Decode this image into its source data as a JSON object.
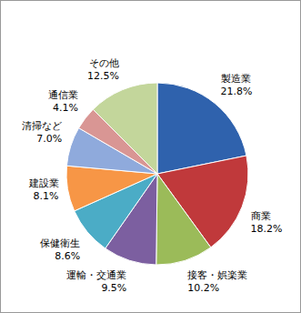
{
  "chart_data": {
    "type": "pie",
    "categories": [
      "製造業",
      "商業",
      "接客・娯楽業",
      "運輸・交通業",
      "保健衛生",
      "建設業",
      "清掃など",
      "通信業",
      "その他"
    ],
    "values": [
      21.8,
      18.2,
      10.2,
      9.5,
      8.6,
      8.1,
      7.0,
      4.1,
      12.5
    ],
    "value_labels": [
      "21.8%",
      "18.2%",
      "10.2%",
      "9.5%",
      "8.6%",
      "8.1%",
      "7.0%",
      "4.1%",
      "12.5%"
    ],
    "colors": [
      "#2f62ad",
      "#c0393b",
      "#9bbb59",
      "#7c5fa0",
      "#4bacc6",
      "#f79646",
      "#8faadc",
      "#d99694",
      "#c3d69b"
    ],
    "data_labels": true
  }
}
